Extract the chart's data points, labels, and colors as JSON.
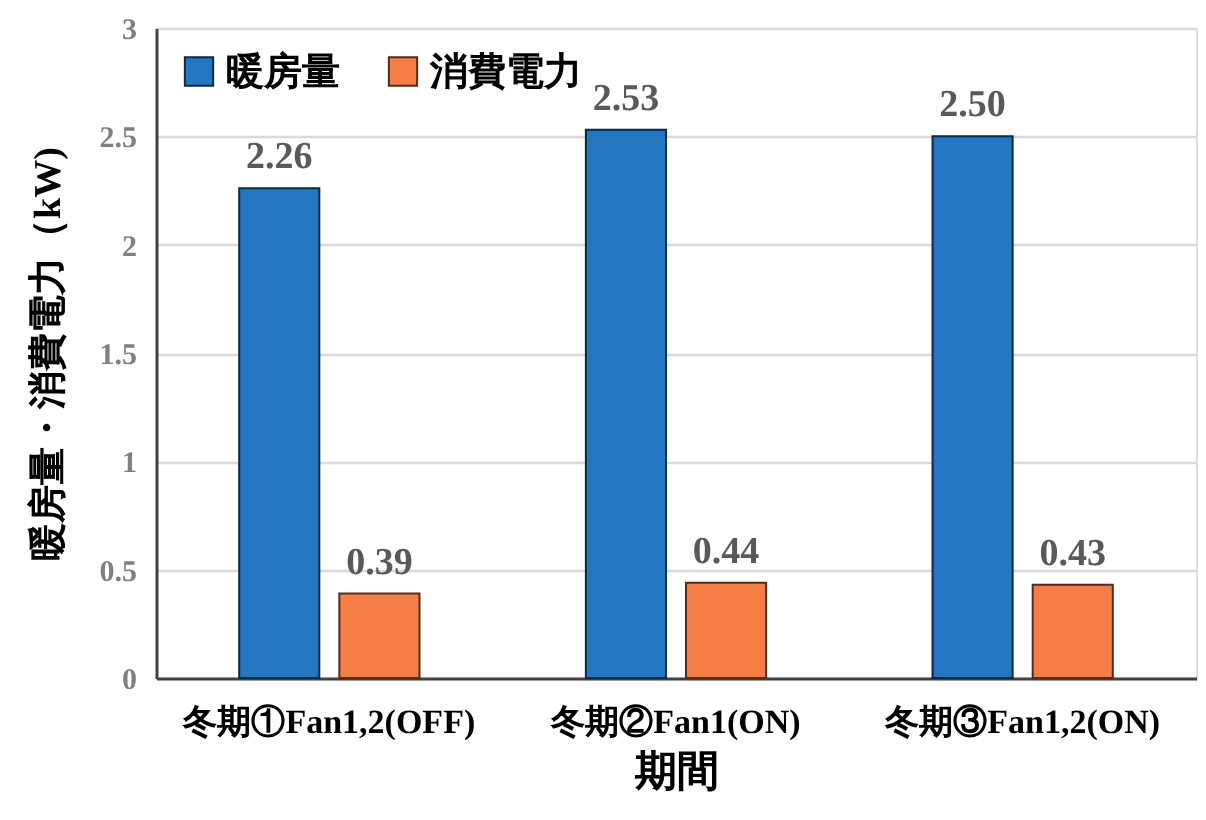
{
  "chart_data": {
    "type": "bar",
    "xlabel": "期間",
    "ylabel": "暖房量・消費電力（kW)",
    "categories": [
      "冬期①Fan1,2(OFF)",
      "冬期②Fan1(ON)",
      "冬期③Fan1,2(ON)"
    ],
    "series": [
      {
        "name": "暖房量",
        "color": "#2476c0",
        "values": [
          2.26,
          2.53,
          2.5
        ],
        "value_labels": [
          "2.26",
          "2.53",
          "2.50"
        ]
      },
      {
        "name": "消費電力",
        "color": "#f47e45",
        "values": [
          0.39,
          0.44,
          0.43
        ],
        "value_labels": [
          "0.39",
          "0.44",
          "0.43"
        ]
      }
    ],
    "ylim": [
      0,
      3
    ],
    "yticks": [
      0,
      0.5,
      1,
      1.5,
      2,
      2.5,
      3
    ],
    "grid": "y",
    "legend": "top left"
  }
}
